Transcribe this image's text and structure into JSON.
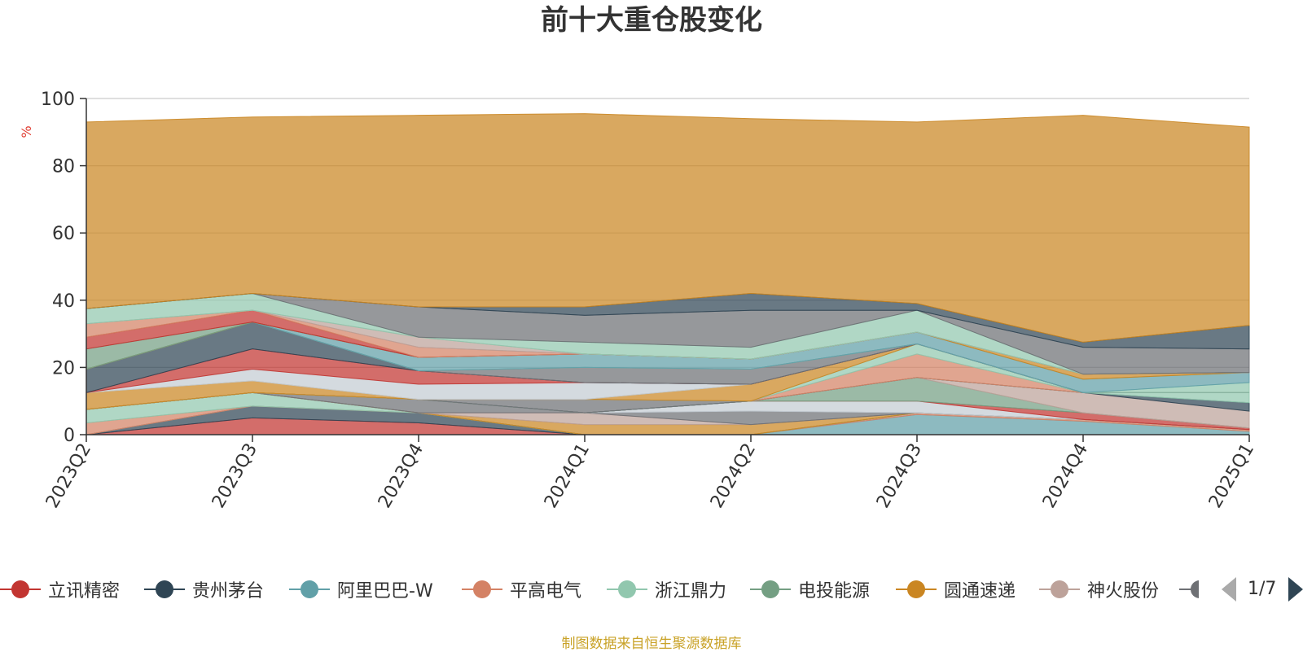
{
  "chart_data": {
    "type": "area",
    "title": "前十大重仓股变化",
    "ylabel": "%",
    "xlabel": "",
    "ylim": [
      0,
      100
    ],
    "yticks": [
      0,
      20,
      40,
      60,
      80,
      100
    ],
    "x": [
      "2023Q2",
      "2023Q3",
      "2023Q4",
      "2024Q1",
      "2024Q2",
      "2024Q3",
      "2024Q4",
      "2025Q1"
    ],
    "grid": true,
    "legend_position": "bottom",
    "series": [
      {
        "name": "立讯精密",
        "color": "#c23531",
        "values": [
          0,
          5,
          3.5,
          0,
          0,
          0,
          0,
          0
        ]
      },
      {
        "name": "贵州茅台",
        "color": "#2f4554",
        "values": [
          0,
          3.5,
          3,
          0,
          0,
          0,
          0,
          0
        ]
      },
      {
        "name": "阿里巴巴-W",
        "color": "#61a0a8",
        "values": [
          0,
          0,
          0,
          0,
          0,
          6,
          4,
          1
        ]
      },
      {
        "name": "平高电气",
        "color": "#d48265",
        "values": [
          3.5,
          0,
          0,
          0,
          0,
          0.5,
          0.5,
          0.5
        ]
      },
      {
        "name": "浙江鼎力",
        "color": "#91c7ae",
        "values": [
          4,
          4,
          0,
          0,
          0,
          0,
          0,
          0
        ]
      },
      {
        "name": "电投能源",
        "color": "#749f83",
        "values": [
          0,
          0,
          0,
          0,
          0,
          0,
          0,
          0
        ]
      },
      {
        "name": "圆通速递",
        "color": "#ca8622",
        "values": [
          0,
          0,
          0,
          3,
          3,
          0,
          0,
          0
        ]
      },
      {
        "name": "神火股份",
        "color": "#bda29a",
        "values": [
          0,
          0,
          0,
          3.5,
          0,
          0,
          0,
          0
        ]
      },
      {
        "name": "",
        "color": "#6e7074",
        "values": [
          0,
          0,
          4,
          0,
          4,
          0,
          0,
          0
        ]
      },
      {
        "name": "",
        "color": "#c4ccd3",
        "values": [
          0,
          0,
          0,
          0,
          3,
          3.5,
          0,
          0
        ]
      },
      {
        "name": "",
        "color": "#c23531",
        "values": [
          0,
          0,
          0,
          0,
          0,
          0,
          2,
          0.5
        ]
      },
      {
        "name": "",
        "color": "#749f83",
        "values": [
          0,
          0,
          0,
          0,
          0,
          7,
          0,
          0
        ]
      },
      {
        "name": "",
        "color": "#bda29a",
        "values": [
          0,
          0,
          0,
          0,
          0,
          0,
          6,
          5
        ]
      },
      {
        "name": "",
        "color": "#2f4554",
        "values": [
          0,
          0,
          0,
          0,
          0,
          0,
          0,
          2.5
        ]
      },
      {
        "name": "",
        "color": "#91c7ae",
        "values": [
          0,
          0,
          0,
          0,
          0,
          0,
          0,
          3
        ]
      },
      {
        "name": "",
        "color": "#6e7074",
        "values": [
          0,
          0,
          0,
          4,
          0,
          0,
          0,
          0
        ]
      },
      {
        "name": "",
        "color": "#d48265",
        "values": [
          0,
          0,
          0,
          0,
          0,
          7,
          0,
          0
        ]
      },
      {
        "name": "",
        "color": "#91c7ae",
        "values": [
          0,
          0,
          0,
          0,
          0,
          3,
          0,
          0
        ]
      },
      {
        "name": "",
        "color": "#ca8622",
        "values": [
          5,
          3.5,
          0,
          0,
          5,
          0,
          0,
          0
        ]
      },
      {
        "name": "",
        "color": "#c4ccd3",
        "values": [
          0,
          3.5,
          4.5,
          5,
          0,
          0,
          0,
          0
        ]
      },
      {
        "name": "",
        "color": "#c23531",
        "values": [
          0,
          6,
          4,
          0,
          0,
          0,
          0,
          0
        ]
      },
      {
        "name": "",
        "color": "#2f4554",
        "values": [
          7,
          8,
          0,
          0,
          0,
          0,
          0,
          0
        ]
      },
      {
        "name": "",
        "color": "#6e7074",
        "values": [
          0,
          0,
          0,
          4.5,
          4.5,
          0,
          0,
          0
        ]
      },
      {
        "name": "",
        "color": "#91c7ae",
        "values": [
          0,
          0,
          0,
          0,
          0,
          0,
          0,
          3
        ]
      },
      {
        "name": "",
        "color": "#61a0a8",
        "values": [
          0,
          0,
          4,
          4,
          3,
          3.5,
          4,
          3
        ]
      },
      {
        "name": "",
        "color": "#ca8622",
        "values": [
          0,
          0,
          0,
          0,
          0,
          0,
          1.5,
          0
        ]
      },
      {
        "name": "",
        "color": "#749f83",
        "values": [
          6,
          0,
          0,
          0,
          0,
          0,
          0,
          0
        ]
      },
      {
        "name": "",
        "color": "#c23531",
        "values": [
          3.5,
          3.5,
          0,
          0,
          0,
          0,
          0,
          0
        ]
      },
      {
        "name": "",
        "color": "#d48265",
        "values": [
          4,
          0,
          3,
          0,
          0,
          0,
          0,
          0
        ]
      },
      {
        "name": "",
        "color": "#bda29a",
        "values": [
          0,
          0,
          3,
          0,
          0,
          0,
          0,
          0
        ]
      },
      {
        "name": "",
        "color": "#91c7ae",
        "values": [
          4.5,
          5,
          0,
          3.5,
          3.5,
          6.5,
          0,
          0
        ]
      },
      {
        "name": "",
        "color": "#6e7074",
        "values": [
          0,
          0,
          9,
          8,
          11,
          0,
          8,
          7
        ]
      },
      {
        "name": "",
        "color": "#2f4554",
        "values": [
          0,
          0,
          0,
          2.5,
          5,
          2,
          1.5,
          7
        ]
      },
      {
        "name": "",
        "color": "#ca8622",
        "values": [
          55.5,
          52.5,
          57,
          57.5,
          52,
          54,
          67.5,
          59
        ]
      }
    ]
  },
  "legend": {
    "items": [
      {
        "name": "立讯精密",
        "color": "#c23531"
      },
      {
        "name": "贵州茅台",
        "color": "#2f4554"
      },
      {
        "name": "阿里巴巴-W",
        "color": "#61a0a8"
      },
      {
        "name": "平高电气",
        "color": "#d48265"
      },
      {
        "name": "浙江鼎力",
        "color": "#91c7ae"
      },
      {
        "name": "电投能源",
        "color": "#749f83"
      },
      {
        "name": "圆通速递",
        "color": "#ca8622"
      },
      {
        "name": "神火股份",
        "color": "#bda29a"
      }
    ],
    "clipped_item_color": "#6e7074",
    "page_text": "1/7"
  },
  "footer_note": "制图数据来自恒生聚源数据库"
}
